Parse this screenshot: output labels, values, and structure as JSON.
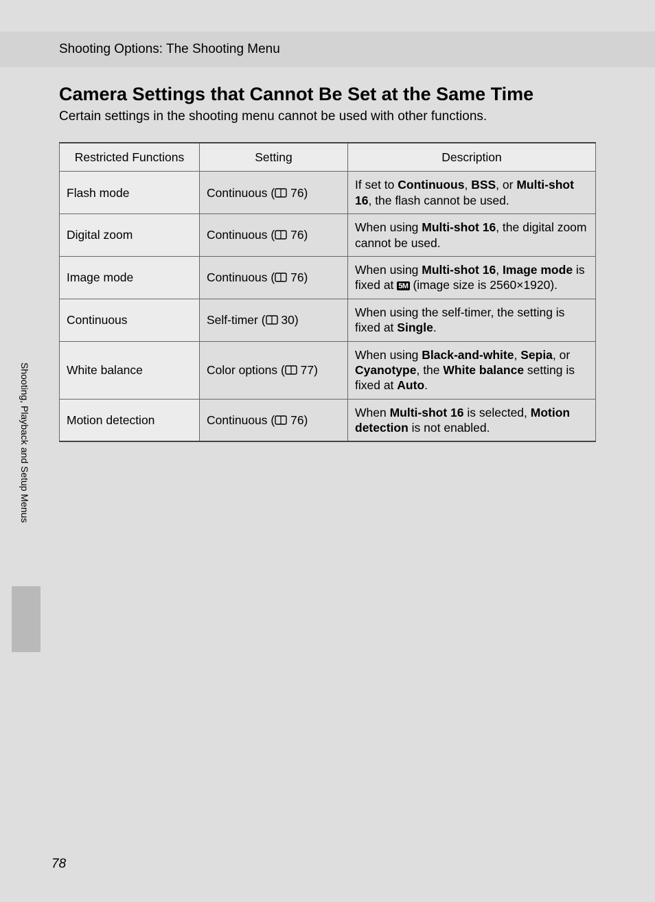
{
  "header": {
    "breadcrumb": "Shooting Options: The Shooting Menu"
  },
  "title": "Camera Settings that Cannot Be Set at the Same Time",
  "intro": "Certain settings in the shooting menu cannot be used with other functions.",
  "sideTab": "Shooting, Playback and Setup Menus",
  "pageNumber": "78",
  "refPages": {
    "p76": "76",
    "p77": "77",
    "p30": "30"
  },
  "settingLabels": {
    "continuous": "Continuous",
    "selfTimer": "Self-timer",
    "colorOptions": "Color options"
  },
  "badge5m": "5M",
  "table": {
    "headers": {
      "col1": "Restricted Functions",
      "col2": "Setting",
      "col3": "Description"
    },
    "rows": [
      {
        "func": "Flash mode",
        "settingKey": "continuous",
        "refKey": "p76",
        "descParts": {
          "t1": "If set to ",
          "b1": "Continuous",
          "t2": ", ",
          "b2": "BSS",
          "t3": ", or ",
          "b3": "Multi-shot 16",
          "t4": ", the flash cannot be used."
        }
      },
      {
        "func": "Digital zoom",
        "settingKey": "continuous",
        "refKey": "p76",
        "descParts": {
          "t1": "When using ",
          "b1": "Multi-shot 16",
          "t2": ", the digital zoom cannot be used."
        }
      },
      {
        "func": "Image mode",
        "settingKey": "continuous",
        "refKey": "p76",
        "descParts": {
          "t1": "When using ",
          "b1": "Multi-shot 16",
          "t2": ", ",
          "b2": "Image mode",
          "t3": " is fixed at ",
          "badge": true,
          "t4": " (image size is 2560×1920)."
        }
      },
      {
        "func": "Continuous",
        "settingKey": "selfTimer",
        "refKey": "p30",
        "descParts": {
          "t1": "When using the self-timer, the setting is fixed at ",
          "b1": "Single",
          "t2": "."
        }
      },
      {
        "func": "White balance",
        "settingKey": "colorOptions",
        "refKey": "p77",
        "descParts": {
          "t1": "When using ",
          "b1": "Black-and-white",
          "t2": ", ",
          "b2": "Sepia",
          "t3": ", or ",
          "b3": "Cyanotype",
          "t4": ", the ",
          "b4": "White balance",
          "t5": " setting is fixed at ",
          "b5": "Auto",
          "t6": "."
        }
      },
      {
        "func": "Motion detection",
        "settingKey": "continuous",
        "refKey": "p76",
        "descParts": {
          "t1": "When ",
          "b1": "Multi-shot 16",
          "t2": " is selected, ",
          "b2": "Motion detection",
          "t3": " is not enabled."
        }
      }
    ]
  },
  "colors": {
    "pageBg": "#dedede",
    "stripBg": "#d3d3d3",
    "cellShade": "#ececec",
    "border": "#666666"
  }
}
